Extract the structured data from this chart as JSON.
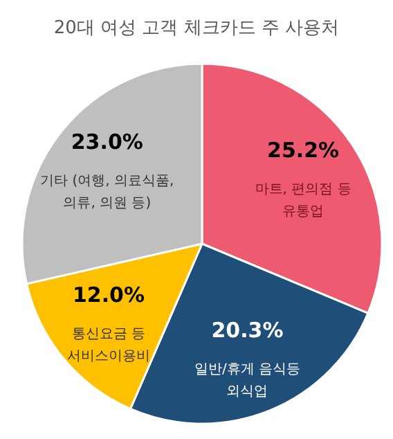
{
  "chart_data": {
    "type": "pie",
    "title": "20대 여성 고객 체크카드 주 사용처",
    "categories": [
      "마트, 편의점 등\n유통업",
      "일반/휴게 음식등\n외식업",
      "통신요금 등\n서비스이용비",
      "기타 (여행, 의료식품,\n의류, 의원 등)"
    ],
    "values": [
      25.2,
      20.3,
      12.0,
      23.0
    ],
    "value_labels": [
      "25.2%",
      "20.3%",
      "12.0%",
      "23.0%"
    ],
    "colors": [
      "#ee5a6f",
      "#1f4e79",
      "#ffc000",
      "#bfbfbf"
    ]
  }
}
